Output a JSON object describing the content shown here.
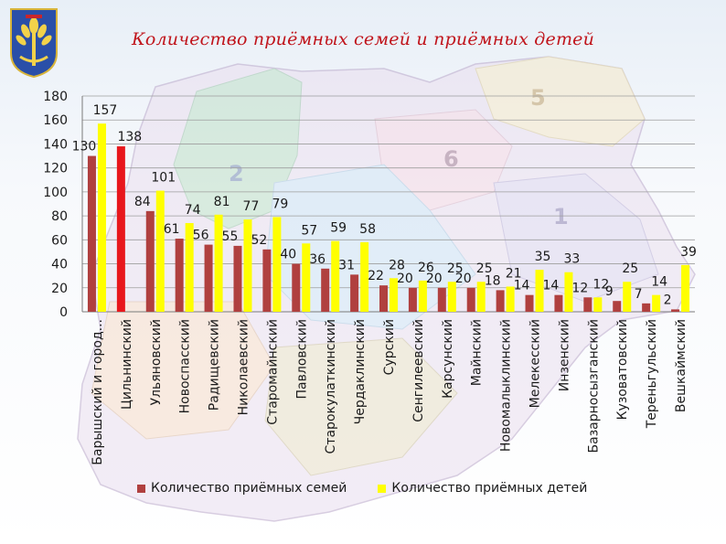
{
  "page": {
    "title": "Количество приёмных семей и приёмных детей"
  },
  "map_labels": [
    "1",
    "2",
    "5",
    "6"
  ],
  "colors": {
    "families": "#b0403f",
    "families_highlight": "#e8171c",
    "children": "#ffff00",
    "title": "#c0141b"
  },
  "chart_data": {
    "type": "bar",
    "categories": [
      "Барышский и город...",
      "Цильнинский",
      "Ульяновский",
      "Новоспасский",
      "Радищевский",
      "Николаевский",
      "Старомайнский",
      "Павловский",
      "Старокулаткинский",
      "Чердаклинский",
      "Сурский",
      "Сенгилеевский",
      "Карсунский",
      "Майнский",
      "Новомалыклинский",
      "Мелекесский",
      "Инзенский",
      "Базарносызганский",
      "Кузоватовский",
      "Тереньгульский",
      "Вешкаймский"
    ],
    "series": [
      {
        "name": "Количество приёмных семей",
        "values": [
          130,
          138,
          84,
          61,
          56,
          55,
          52,
          40,
          36,
          31,
          22,
          20,
          20,
          20,
          18,
          14,
          14,
          12,
          9,
          7,
          2
        ],
        "highlight_index": 1
      },
      {
        "name": "Количество приёмных детей",
        "values": [
          157,
          null,
          101,
          74,
          81,
          77,
          79,
          57,
          59,
          58,
          28,
          26,
          25,
          25,
          21,
          35,
          33,
          12,
          25,
          14,
          39
        ]
      }
    ],
    "ylim": [
      0,
      180
    ],
    "yticks": [
      0,
      20,
      40,
      60,
      80,
      100,
      120,
      140,
      160,
      180
    ],
    "grid": true,
    "legend_position": "bottom"
  }
}
